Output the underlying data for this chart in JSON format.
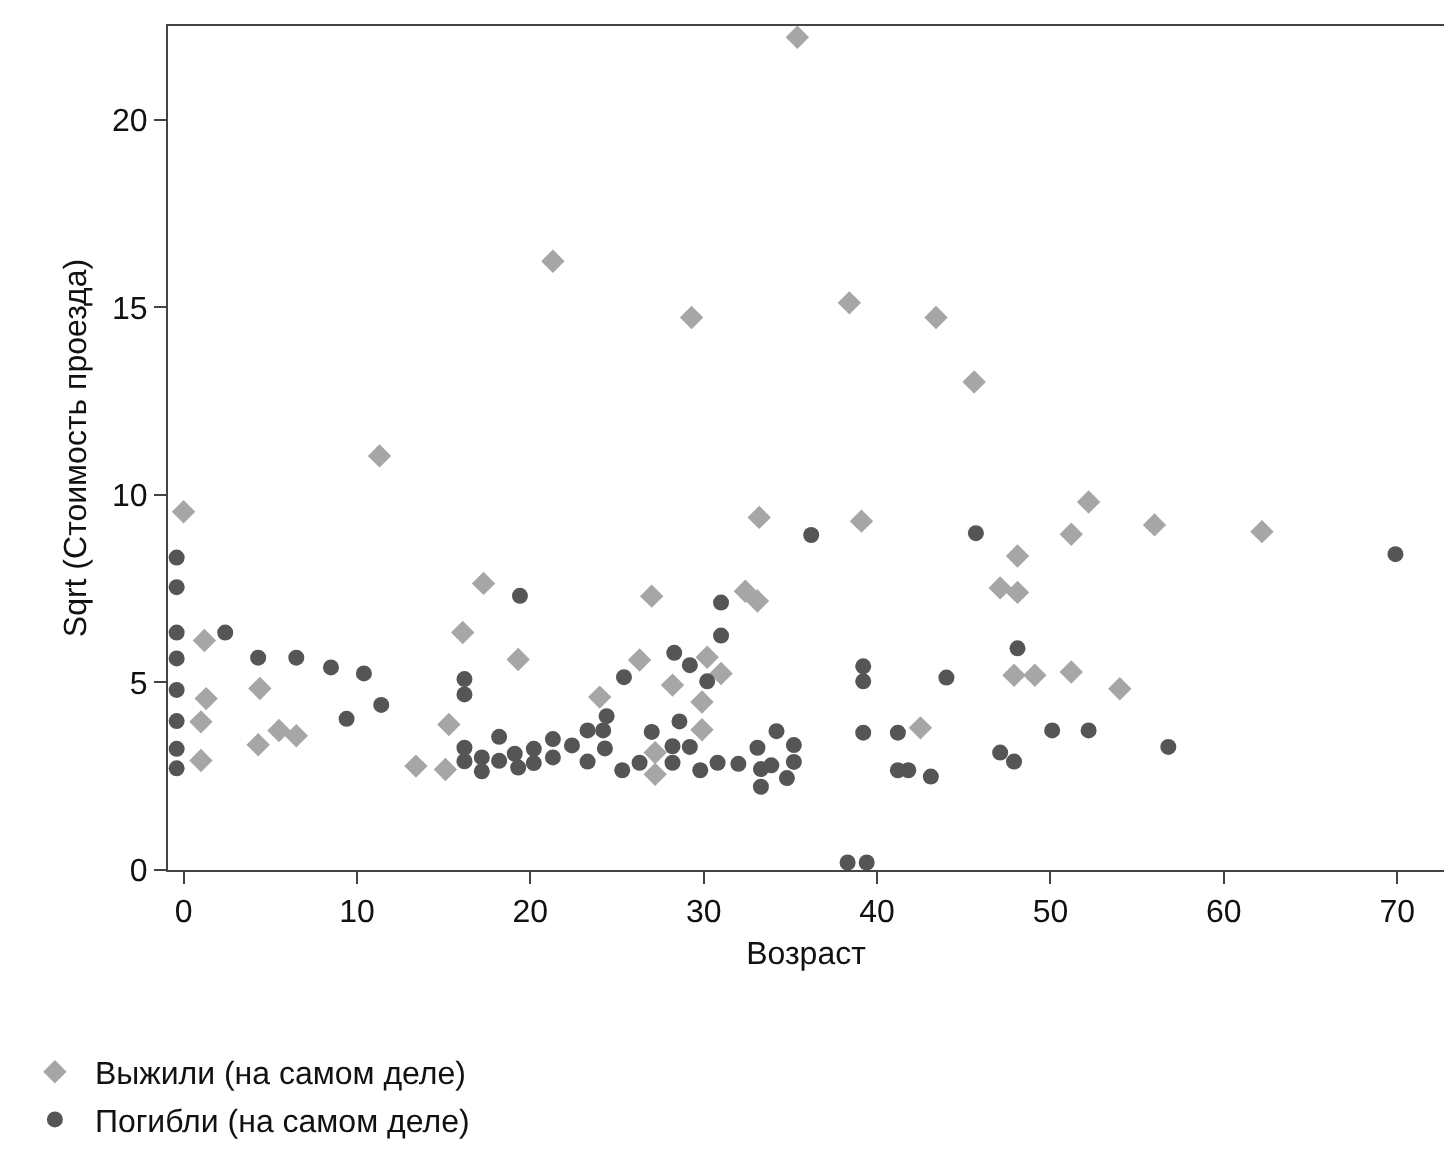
{
  "chart_data": {
    "type": "scatter",
    "xlabel": "Возраст",
    "ylabel": "Sqrt (Стоимость проезда)",
    "xlim": [
      -0.9,
      72.7
    ],
    "ylim": [
      0,
      22.5
    ],
    "xticks": [
      0,
      10,
      20,
      30,
      40,
      50,
      60,
      70
    ],
    "yticks": [
      0,
      5,
      10,
      15,
      20
    ],
    "grid": false,
    "legend": "bottom left",
    "series": [
      {
        "name": "Выжили (на самом деле)",
        "color": "#a6a6a6",
        "marker": "diamond",
        "x": [
          0,
          11.3,
          1.2,
          1.3,
          1.0,
          1.0,
          4.4,
          4.3,
          5.5,
          6.5,
          13.4,
          15.1,
          15.3,
          16.1,
          17.3,
          19.3,
          33.2,
          39.1,
          27.0,
          32.4,
          33.1,
          26.3,
          30.2,
          31.0,
          28.2,
          24.0,
          29.9,
          29.9,
          27.2,
          27.2,
          42.5,
          52.2,
          51.2,
          56.0,
          62.2,
          48.1,
          47.1,
          48.1,
          47.9,
          49.1,
          51.2,
          54.0,
          35.4,
          21.3,
          29.3,
          38.4,
          43.4,
          45.6
        ],
        "values": [
          9.55,
          11.04,
          6.12,
          4.57,
          3.95,
          2.92,
          4.84,
          3.34,
          3.72,
          3.58,
          2.77,
          2.68,
          3.88,
          6.33,
          7.64,
          5.61,
          9.4,
          9.3,
          7.3,
          7.43,
          7.17,
          5.6,
          5.67,
          5.24,
          4.93,
          4.61,
          4.48,
          3.74,
          3.13,
          2.55,
          3.79,
          9.81,
          8.95,
          9.2,
          9.02,
          8.37,
          7.52,
          7.4,
          5.19,
          5.19,
          5.28,
          4.83,
          22.2,
          16.23,
          14.73,
          15.12,
          14.73,
          13.01
        ]
      },
      {
        "name": "Погибли (на самом деле)",
        "color": "#555555",
        "marker": "circle",
        "x": [
          -0.4,
          -0.4,
          -0.4,
          -0.4,
          -0.4,
          -0.4,
          -0.4,
          -0.4,
          2.4,
          4.3,
          6.5,
          8.5,
          10.4,
          9.4,
          11.4,
          19.4,
          16.2,
          16.2,
          16.2,
          16.2,
          17.2,
          17.2,
          18.2,
          18.2,
          19.1,
          19.3,
          20.2,
          20.2,
          21.3,
          21.3,
          22.4,
          36.2,
          45.7,
          31.0,
          31.0,
          28.3,
          29.2,
          25.4,
          30.2,
          39.2,
          39.2,
          44.0,
          24.4,
          28.6,
          34.2,
          39.2,
          41.2,
          41.2,
          41.8,
          43.1,
          38.3,
          39.4,
          23.3,
          24.2,
          23.3,
          24.3,
          25.3,
          26.3,
          27.0,
          28.2,
          28.2,
          29.2,
          29.8,
          30.8,
          32.0,
          33.1,
          33.3,
          33.3,
          33.9,
          34.8,
          35.2,
          35.2,
          69.9,
          48.1,
          50.1,
          52.2,
          47.1,
          47.9,
          56.8
        ],
        "values": [
          8.33,
          7.54,
          6.33,
          5.64,
          4.8,
          3.97,
          3.23,
          2.71,
          6.33,
          5.66,
          5.66,
          5.4,
          5.24,
          4.03,
          4.4,
          7.31,
          5.09,
          4.68,
          3.26,
          2.9,
          3.0,
          2.63,
          3.55,
          2.91,
          3.1,
          2.73,
          3.23,
          2.85,
          3.49,
          3.0,
          3.32,
          8.93,
          8.98,
          7.13,
          6.25,
          5.79,
          5.46,
          5.14,
          5.03,
          5.43,
          5.03,
          5.13,
          4.1,
          3.96,
          3.7,
          3.66,
          3.66,
          2.66,
          2.66,
          2.49,
          0.2,
          0.2,
          3.72,
          3.72,
          2.89,
          3.24,
          2.66,
          2.86,
          3.68,
          3.3,
          2.86,
          3.28,
          2.66,
          2.86,
          2.83,
          3.26,
          2.69,
          2.22,
          2.79,
          2.45,
          3.33,
          2.88,
          8.42,
          5.91,
          3.72,
          3.72,
          3.13,
          2.89,
          3.28
        ]
      }
    ]
  }
}
